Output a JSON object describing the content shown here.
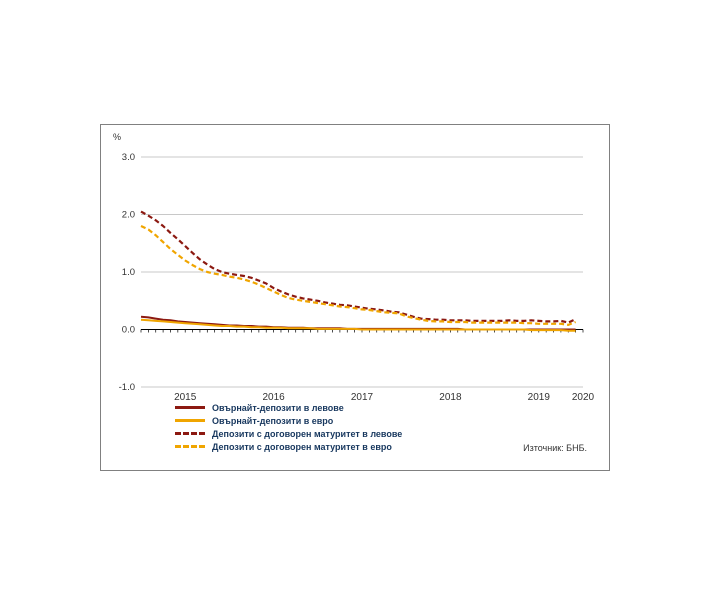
{
  "chart": {
    "percent_label": "%",
    "source": "Източник: БНБ.",
    "y_ticks": [
      "3.0",
      "2.0",
      "1.0",
      "0.0",
      "-1.0"
    ],
    "x_labels": [
      "2015",
      "2016",
      "2017",
      "2018",
      "2019",
      "2020"
    ],
    "colors": {
      "dark_red": "#8c1911",
      "orange": "#f0a500",
      "gridline": "#c8c8c8",
      "axis": "#000000",
      "legend_text": "#17375e"
    }
  },
  "chart_data": {
    "type": "line",
    "title": "",
    "ylabel": "%",
    "ylim": [
      -1.0,
      3.0
    ],
    "x_unit": "month",
    "x_range": [
      "2015-01",
      "2019-12"
    ],
    "grid": "horizontal",
    "legend_position": "bottom-left",
    "series": [
      {
        "name": "Овърнайт-депозити в левове",
        "color": "#8c1911",
        "dash": "solid",
        "values": [
          0.22,
          0.21,
          0.19,
          0.17,
          0.16,
          0.14,
          0.13,
          0.12,
          0.11,
          0.1,
          0.09,
          0.08,
          0.07,
          0.07,
          0.06,
          0.06,
          0.05,
          0.05,
          0.04,
          0.04,
          0.03,
          0.03,
          0.03,
          0.02,
          0.02,
          0.02,
          0.02,
          0.02,
          0.01,
          0.01,
          0.01,
          0.01,
          0.01,
          0.01,
          0.01,
          0.01,
          0.01,
          0.01,
          0.01,
          0.01,
          0.01,
          0.01,
          0.01,
          0.01,
          0.0,
          0.0,
          0.0,
          0.0,
          0.0,
          0.0,
          0.0,
          0.0,
          0.0,
          0.0,
          0.0,
          0.0,
          0.0,
          0.0,
          0.0,
          0.0
        ]
      },
      {
        "name": "Овърнайт-депозити в евро",
        "color": "#f0a500",
        "dash": "solid",
        "values": [
          0.17,
          0.16,
          0.15,
          0.14,
          0.13,
          0.12,
          0.11,
          0.1,
          0.09,
          0.08,
          0.07,
          0.06,
          0.06,
          0.05,
          0.05,
          0.04,
          0.04,
          0.03,
          0.03,
          0.03,
          0.02,
          0.02,
          0.02,
          0.02,
          0.01,
          0.01,
          0.01,
          0.01,
          0.01,
          0.01,
          0.0,
          0.0,
          0.0,
          0.0,
          0.0,
          0.0,
          0.0,
          0.0,
          0.0,
          0.0,
          0.0,
          0.0,
          0.0,
          0.0,
          0.0,
          0.0,
          0.0,
          0.0,
          0.0,
          0.0,
          0.0,
          0.0,
          0.0,
          -0.01,
          -0.01,
          -0.01,
          -0.01,
          -0.01,
          -0.02,
          -0.02
        ]
      },
      {
        "name": "Депозити с договорен матуритет в левове",
        "color": "#8c1911",
        "dash": "dashed",
        "values": [
          2.05,
          1.98,
          1.9,
          1.8,
          1.68,
          1.57,
          1.45,
          1.33,
          1.22,
          1.13,
          1.05,
          1.0,
          0.97,
          0.95,
          0.93,
          0.9,
          0.85,
          0.8,
          0.72,
          0.66,
          0.61,
          0.57,
          0.54,
          0.52,
          0.5,
          0.47,
          0.45,
          0.43,
          0.42,
          0.4,
          0.38,
          0.36,
          0.35,
          0.33,
          0.31,
          0.3,
          0.26,
          0.22,
          0.19,
          0.18,
          0.17,
          0.17,
          0.16,
          0.16,
          0.16,
          0.15,
          0.15,
          0.15,
          0.15,
          0.15,
          0.16,
          0.15,
          0.15,
          0.16,
          0.15,
          0.14,
          0.14,
          0.15,
          0.12,
          0.18
        ]
      },
      {
        "name": "Депозити с договорен матуритет в евро",
        "color": "#f0a500",
        "dash": "dashed",
        "values": [
          1.8,
          1.74,
          1.64,
          1.52,
          1.4,
          1.3,
          1.2,
          1.12,
          1.05,
          1.0,
          0.97,
          0.95,
          0.92,
          0.9,
          0.87,
          0.83,
          0.78,
          0.72,
          0.66,
          0.6,
          0.55,
          0.52,
          0.5,
          0.48,
          0.46,
          0.44,
          0.42,
          0.4,
          0.39,
          0.37,
          0.35,
          0.34,
          0.32,
          0.3,
          0.29,
          0.28,
          0.23,
          0.2,
          0.17,
          0.15,
          0.14,
          0.14,
          0.13,
          0.13,
          0.13,
          0.12,
          0.12,
          0.12,
          0.12,
          0.12,
          0.12,
          0.12,
          0.11,
          0.11,
          0.1,
          0.1,
          0.1,
          0.1,
          0.08,
          0.13
        ]
      }
    ]
  }
}
